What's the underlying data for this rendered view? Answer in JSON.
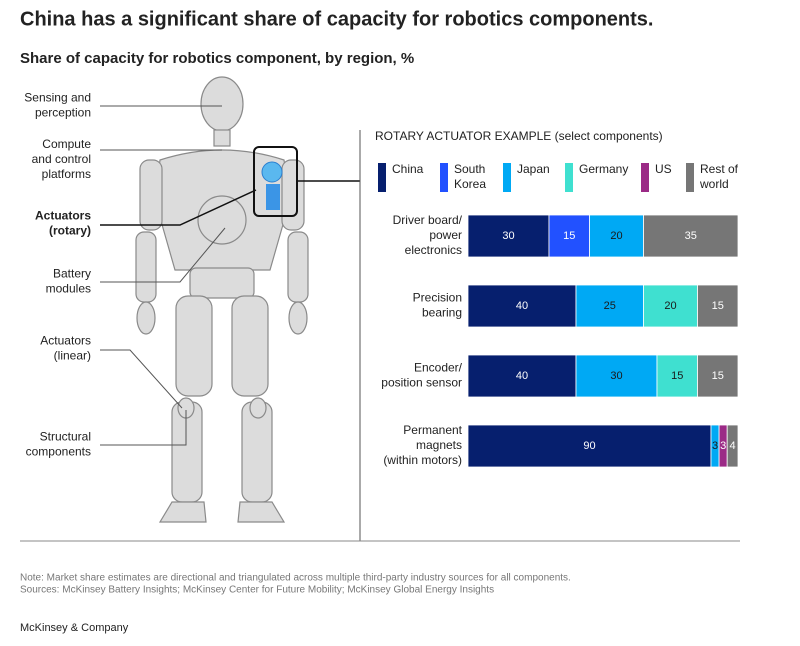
{
  "title": "China has a significant share of capacity for robotics components.",
  "subtitle": "Share of capacity for robotics component, by region, %",
  "figure_labels": [
    [
      "Sensing and",
      "perception"
    ],
    [
      "Compute",
      "and control",
      "platforms"
    ],
    [
      "Actuators",
      "(rotary)"
    ],
    [
      "Battery",
      "modules"
    ],
    [
      "Actuators",
      "(linear)"
    ],
    [
      "Structural",
      "components"
    ]
  ],
  "chart_data": {
    "type": "bar",
    "orientation": "horizontal",
    "stacked": true,
    "title": "ROTARY ACTUATOR EXAMPLE (select components)",
    "categories": [
      [
        "Driver board/",
        "power",
        "electronics"
      ],
      [
        "Precision",
        "bearing"
      ],
      [
        "Encoder/",
        "position sensor"
      ],
      [
        "Permanent",
        "magnets",
        "(within motors)"
      ]
    ],
    "xlim": [
      0,
      100
    ],
    "series": [
      {
        "name": "China",
        "color": "#061f6e",
        "values": [
          30,
          40,
          40,
          90
        ]
      },
      {
        "name": "South Korea",
        "color": "#2251ff",
        "values": [
          15,
          null,
          null,
          null
        ]
      },
      {
        "name": "Japan",
        "color": "#00a9f4",
        "values": [
          20,
          25,
          30,
          3
        ]
      },
      {
        "name": "Germany",
        "color": "#3fe0d0",
        "values": [
          null,
          20,
          15,
          null
        ]
      },
      {
        "name": "US",
        "color": "#9b2a86",
        "values": [
          null,
          null,
          null,
          3
        ]
      },
      {
        "name": "Rest of world",
        "color": "#767676",
        "values": [
          35,
          15,
          15,
          4
        ]
      }
    ]
  },
  "note": "Note: Market share estimates are directional and triangulated across multiple third-party industry sources for all components.",
  "sources": "Sources: McKinsey Battery Insights; McKinsey Center for Future Mobility; McKinsey Global Energy Insights",
  "footer": "McKinsey & Company"
}
